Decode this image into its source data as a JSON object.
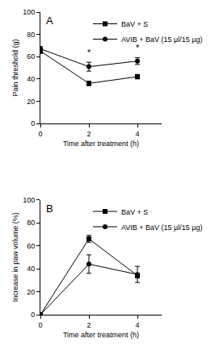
{
  "chart_data": [
    {
      "type": "line",
      "panel": "A",
      "x_label": "Time after treatment (h)",
      "y_label": "Pain threshold (g)",
      "x": [
        0,
        2,
        4
      ],
      "xlim": [
        0,
        5
      ],
      "xticks": [
        0,
        2,
        4
      ],
      "ylim": [
        0,
        100
      ],
      "yticks": [
        0,
        20,
        40,
        60,
        80,
        100
      ],
      "grid": false,
      "legend": "top right",
      "series": [
        {
          "name": "BaV + S",
          "color": "#000000",
          "marker": "square",
          "line_style": "solid",
          "values": [
            65,
            36,
            42
          ],
          "errors": [
            2,
            2,
            2
          ]
        },
        {
          "name": "AVIB + BaV (15 µl/15 µg)",
          "color": "#000000",
          "marker": "circle",
          "line_style": "solid",
          "values": [
            67,
            51,
            56
          ],
          "errors": [
            2,
            4,
            3
          ]
        }
      ],
      "annotations": [
        {
          "x": 2,
          "y": 58,
          "text": "*"
        },
        {
          "x": 4,
          "y": 62,
          "text": "*"
        }
      ]
    },
    {
      "type": "line",
      "panel": "B",
      "x_label": "Time after treatment (h)",
      "y_label": "Increase in paw volume (%)",
      "x": [
        0,
        2,
        4
      ],
      "xlim": [
        0,
        5
      ],
      "xticks": [
        0,
        2,
        4
      ],
      "ylim": [
        0,
        100
      ],
      "yticks": [
        0,
        20,
        40,
        60,
        80,
        100
      ],
      "grid": false,
      "legend": "top right",
      "series": [
        {
          "name": "BaV + S",
          "color": "#000000",
          "marker": "square",
          "line_style": "solid",
          "values": [
            0,
            66,
            34
          ],
          "errors": [
            0,
            3,
            2
          ]
        },
        {
          "name": "AVIB + BaV (15 µl/15 µg)",
          "color": "#000000",
          "marker": "circle",
          "line_style": "solid",
          "values": [
            0,
            44,
            35
          ],
          "errors": [
            0,
            8,
            7
          ]
        }
      ]
    }
  ]
}
